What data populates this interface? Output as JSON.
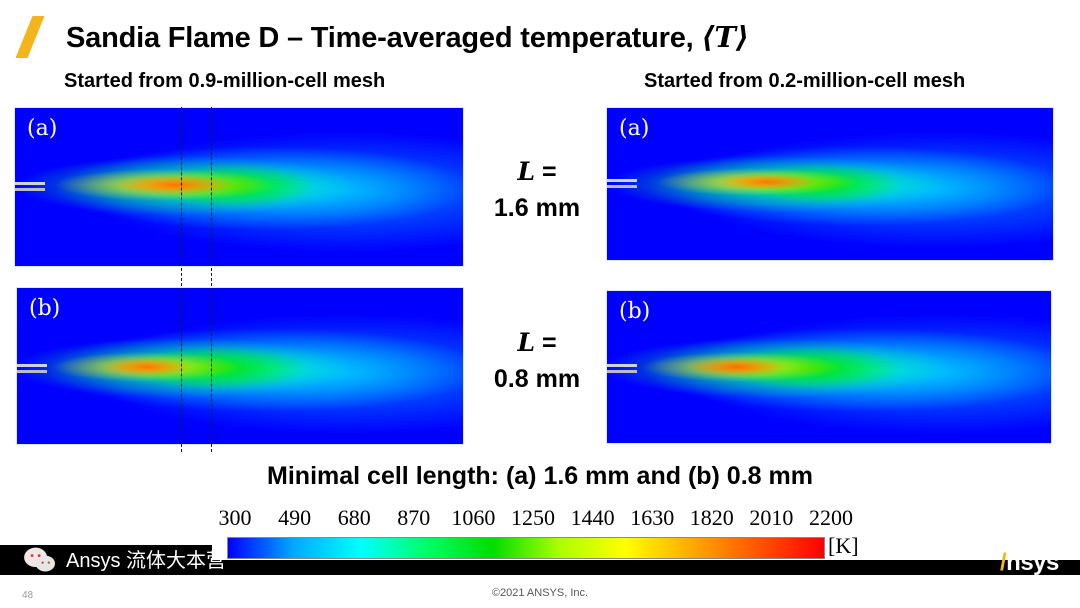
{
  "slide": {
    "title_text": "Sandia Flame D – Time-averaged temperature, ",
    "title_math": "⟨T⟩",
    "left_heading": "Started from 0.9-million-cell mesh",
    "right_heading": "Started from 0.2-million-cell mesh",
    "row_labels": [
      {
        "symbol": "L",
        "eq": " =",
        "value": "1.6 mm"
      },
      {
        "symbol": "L",
        "eq": " =",
        "value": "0.8 mm"
      }
    ],
    "panels": [
      {
        "label": "(a)",
        "mesh": "0.9-million-cell",
        "cell_length": "1.6 mm"
      },
      {
        "label": "(a)",
        "mesh": "0.2-million-cell",
        "cell_length": "1.6 mm"
      },
      {
        "label": "(b)",
        "mesh": "0.9-million-cell",
        "cell_length": "0.8 mm"
      },
      {
        "label": "(b)",
        "mesh": "0.2-million-cell",
        "cell_length": "0.8 mm"
      }
    ],
    "caption": "Minimal cell length: (a) 1.6 mm and (b) 0.8 mm",
    "colorbar": {
      "ticks": [
        "300",
        "490",
        "680",
        "870",
        "1060",
        "1250",
        "1440",
        "1630",
        "1820",
        "2010",
        "2200"
      ],
      "unit": "[K]",
      "min": 300,
      "max": 2200,
      "colors": [
        "#0000ff",
        "#00aaff",
        "#00ffff",
        "#00ff66",
        "#00dd00",
        "#aaff00",
        "#ffff00",
        "#ffaa00",
        "#ff5500",
        "#ff0000"
      ]
    },
    "footer": {
      "page_number": "48",
      "copyright": "©2021 ANSYS, Inc.",
      "brand": "nsys",
      "brand_initial": "/",
      "watermark": "Ansys 流体大本营"
    },
    "accent_color": "#f2b51c"
  }
}
